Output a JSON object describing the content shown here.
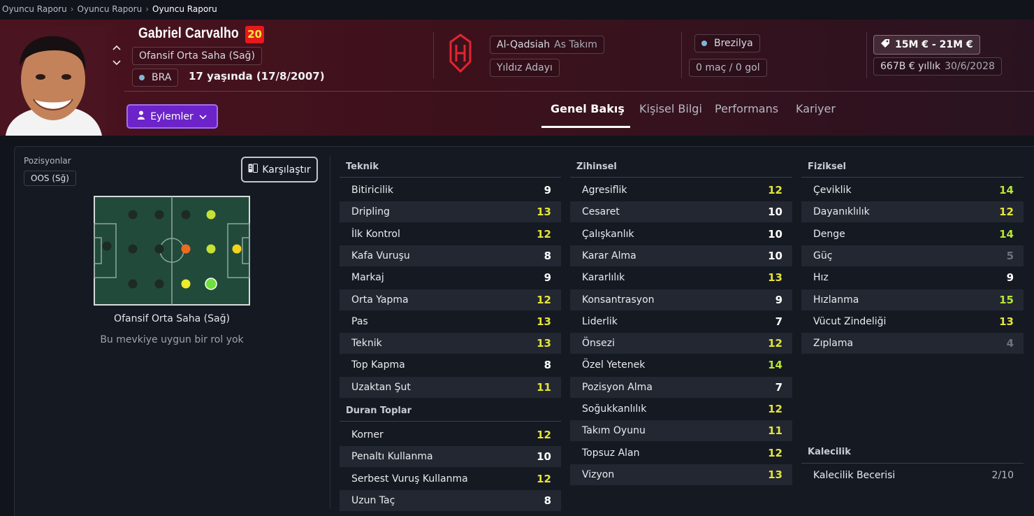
{
  "breadcrumb": [
    "Oyuncu Raporu",
    "Oyuncu Raporu",
    "Oyuncu Raporu"
  ],
  "player": {
    "name": "Gabriel Carvalho",
    "ca": "20",
    "position_long": "Ofansif Orta Saha (Sağ)",
    "nationality_code": "BRA",
    "age_text": "17 yaşında (17/8/2007)"
  },
  "club": {
    "name": "Al-Qadsiah",
    "squad": "As Takım",
    "status": "Yıldız Adayı"
  },
  "nation": {
    "name": "Brezilya",
    "caps": "0 maç / 0 gol"
  },
  "contract": {
    "value": "15M € - 21M €",
    "wage": "667B € yıllık",
    "expiry": "30/6/2028"
  },
  "actions_label": "Eylemler",
  "tabs": [
    {
      "label": "Genel Bakış",
      "active": true
    },
    {
      "label": "Kişisel Bilgi",
      "active": false
    },
    {
      "label": "Performans",
      "active": false
    },
    {
      "label": "Kariyer",
      "active": false
    }
  ],
  "positions": {
    "label": "Pozisyonlar",
    "chip": "OOS (Sğ)",
    "compare_label": "Karşılaştır",
    "caption": "Ofansif Orta Saha (Sağ)",
    "note": "Bu mevkiye uygun bir rol yok"
  },
  "pitch_dots": [
    {
      "color": "#1e2a26"
    },
    {
      "color": "#1e2a26"
    },
    {
      "color": "#1e2a26"
    },
    {
      "color": "#c6e036"
    },
    {
      "color": "#1e2a26"
    },
    {
      "color": "#1e2a26"
    },
    {
      "color": "#1e2a26"
    },
    {
      "color": "#f06a1e"
    },
    {
      "color": "#c6e036"
    },
    {
      "color": "#f2d41a"
    },
    {
      "color": "#1e2a26"
    },
    {
      "color": "#1e2a26"
    },
    {
      "color": "#f0ec2a"
    },
    {
      "color": "#6ee03a"
    }
  ],
  "colors": {
    "white_value": "#ffffff",
    "yellow_value": "#e4e43a",
    "green_value": "#b6e632",
    "dim_value": "#6e727c",
    "accent_purple": "#6c23c9",
    "header_red": "#4b131f",
    "ca_badge": "#e51a1a"
  },
  "technical": {
    "title": "Teknik",
    "items": [
      {
        "name": "Bitiricilik",
        "value": "9"
      },
      {
        "name": "Dripling",
        "value": "13"
      },
      {
        "name": "İlk Kontrol",
        "value": "12"
      },
      {
        "name": "Kafa Vuruşu",
        "value": "8"
      },
      {
        "name": "Markaj",
        "value": "9"
      },
      {
        "name": "Orta Yapma",
        "value": "12"
      },
      {
        "name": "Pas",
        "value": "13"
      },
      {
        "name": "Teknik",
        "value": "13"
      },
      {
        "name": "Top Kapma",
        "value": "8"
      },
      {
        "name": "Uzaktan Şut",
        "value": "11"
      }
    ]
  },
  "set_pieces": {
    "title": "Duran Toplar",
    "items": [
      {
        "name": "Korner",
        "value": "12"
      },
      {
        "name": "Penaltı Kullanma",
        "value": "10"
      },
      {
        "name": "Serbest Vuruş Kullanma",
        "value": "12"
      },
      {
        "name": "Uzun Taç",
        "value": "8"
      }
    ]
  },
  "mental": {
    "title": "Zihinsel",
    "items": [
      {
        "name": "Agresiflik",
        "value": "12"
      },
      {
        "name": "Cesaret",
        "value": "10"
      },
      {
        "name": "Çalışkanlık",
        "value": "10"
      },
      {
        "name": "Karar Alma",
        "value": "10"
      },
      {
        "name": "Kararlılık",
        "value": "13"
      },
      {
        "name": "Konsantrasyon",
        "value": "9"
      },
      {
        "name": "Liderlik",
        "value": "7"
      },
      {
        "name": "Önsezi",
        "value": "12"
      },
      {
        "name": "Özel Yetenek",
        "value": "14"
      },
      {
        "name": "Pozisyon Alma",
        "value": "7"
      },
      {
        "name": "Soğukkanlılık",
        "value": "12"
      },
      {
        "name": "Takım Oyunu",
        "value": "11"
      },
      {
        "name": "Topsuz Alan",
        "value": "12"
      },
      {
        "name": "Vizyon",
        "value": "13"
      }
    ]
  },
  "physical": {
    "title": "Fiziksel",
    "items": [
      {
        "name": "Çeviklik",
        "value": "14"
      },
      {
        "name": "Dayanıklılık",
        "value": "12"
      },
      {
        "name": "Denge",
        "value": "14"
      },
      {
        "name": "Güç",
        "value": "5"
      },
      {
        "name": "Hız",
        "value": "9"
      },
      {
        "name": "Hızlanma",
        "value": "15"
      },
      {
        "name": "Vücut Zindeliği",
        "value": "13"
      },
      {
        "name": "Zıplama",
        "value": "4"
      }
    ]
  },
  "goalkeeping": {
    "title": "Kalecilik",
    "label": "Kalecilik Becerisi",
    "value": "2/10"
  }
}
